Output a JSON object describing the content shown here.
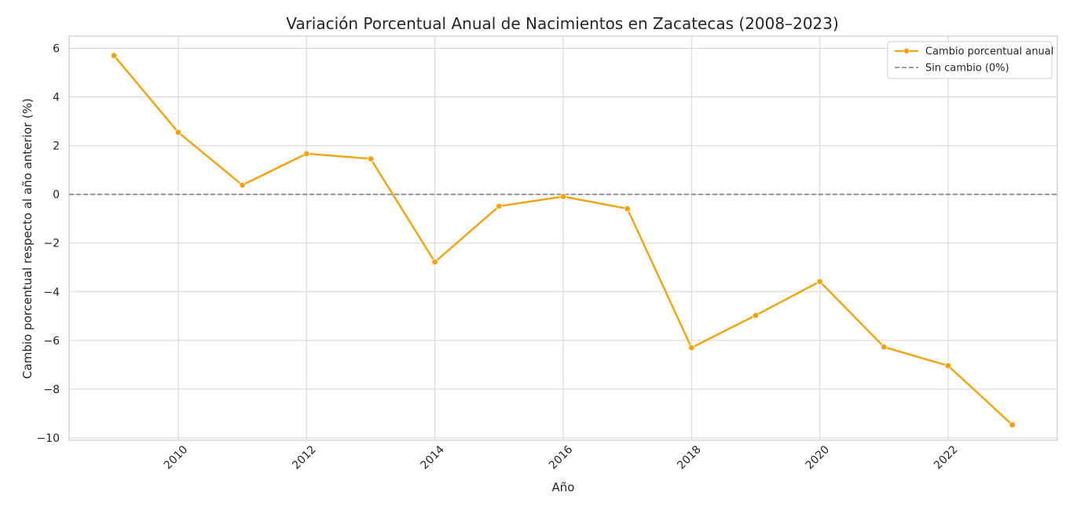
{
  "chart_data": {
    "type": "line",
    "title": "Variación Porcentual Anual de Nacimientos en Zacatecas (2008–2023)",
    "xlabel": "Año",
    "ylabel": "Cambio porcentual respecto al año anterior (%)",
    "xlim": [
      2008.3,
      2023.7
    ],
    "ylim": [
      -10.1,
      6.5
    ],
    "x_ticks": [
      "2010",
      "2012",
      "2014",
      "2016",
      "2018",
      "2020",
      "2022"
    ],
    "y_ticks": [
      "6",
      "4",
      "2",
      "0",
      "−2",
      "−4",
      "−6",
      "−8",
      "−10"
    ],
    "grid": true,
    "legend_position": "top-right",
    "series": [
      {
        "name": "Cambio porcentual anual",
        "color": "#f5a20e",
        "x": [
          2009,
          2010,
          2011,
          2012,
          2013,
          2014,
          2015,
          2016,
          2017,
          2018,
          2019,
          2020,
          2021,
          2022,
          2023
        ],
        "values": [
          5.7,
          2.55,
          0.38,
          1.67,
          1.46,
          -2.78,
          -0.49,
          -0.09,
          -0.59,
          -6.3,
          -4.97,
          -3.58,
          -6.27,
          -7.04,
          -9.47
        ]
      }
    ],
    "reference_lines": [
      {
        "name": "Sin cambio (0%)",
        "y": 0,
        "color": "#808080",
        "style": "dashed"
      }
    ]
  }
}
